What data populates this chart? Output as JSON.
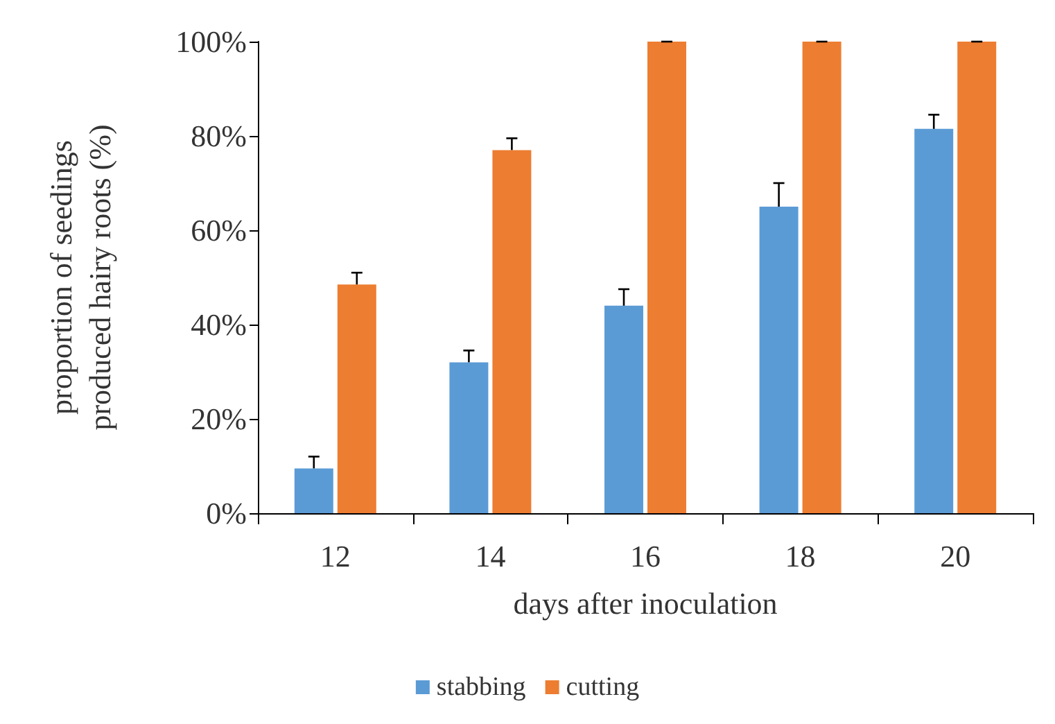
{
  "chart_data": {
    "type": "bar",
    "xlabel": "days after inoculation",
    "ylabel": "proportion of seedings\nproduced hairy roots (%)",
    "categories": [
      "12",
      "14",
      "16",
      "18",
      "20"
    ],
    "series": [
      {
        "name": "stabbing",
        "color": "#5b9bd5",
        "values": [
          9.5,
          32,
          44,
          65,
          81.5
        ],
        "errors": [
          [
            9.5,
            12
          ],
          [
            32,
            34.5
          ],
          [
            44,
            47.5
          ],
          [
            65,
            70
          ],
          [
            81.5,
            84.5
          ]
        ]
      },
      {
        "name": "cutting",
        "color": "#ed7d31",
        "values": [
          48.5,
          77,
          100,
          100,
          100
        ],
        "errors": [
          [
            48.5,
            51
          ],
          [
            77,
            79.5
          ],
          [
            100,
            100
          ],
          [
            100,
            100
          ],
          [
            100,
            100
          ]
        ]
      }
    ],
    "ylim": [
      0,
      100
    ],
    "yticks": [
      {
        "value": 0,
        "label": "0%"
      },
      {
        "value": 20,
        "label": "20%"
      },
      {
        "value": 40,
        "label": "40%"
      },
      {
        "value": 60,
        "label": "60%"
      },
      {
        "value": 80,
        "label": "80%"
      },
      {
        "value": 100,
        "label": "100%"
      }
    ],
    "grid": false,
    "legend": "bottom"
  }
}
